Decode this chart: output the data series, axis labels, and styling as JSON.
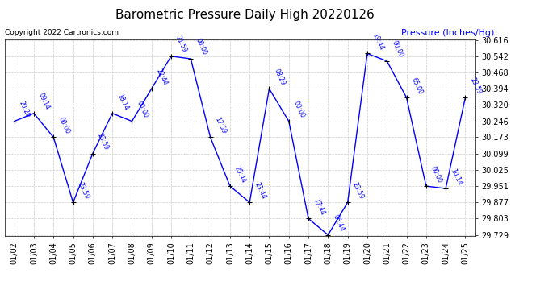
{
  "title": "Barometric Pressure Daily High 20220126",
  "ylabel": "Pressure (Inches/Hg)",
  "copyright": "Copyright 2022 Cartronics.com",
  "line_color": "#0000ff",
  "marker_color": "#000000",
  "background_color": "#ffffff",
  "grid_color": "#cccccc",
  "ylim_min": 29.729,
  "ylim_max": 30.616,
  "ytick_values": [
    29.729,
    29.803,
    29.877,
    29.951,
    30.025,
    30.099,
    30.173,
    30.246,
    30.32,
    30.394,
    30.468,
    30.542,
    30.616
  ],
  "dates": [
    "01/02",
    "01/03",
    "01/04",
    "01/05",
    "01/06",
    "01/07",
    "01/08",
    "01/09",
    "01/10",
    "01/11",
    "01/12",
    "01/13",
    "01/14",
    "01/15",
    "01/16",
    "01/17",
    "01/18",
    "01/19",
    "01/20",
    "01/21",
    "01/22",
    "01/23",
    "01/24",
    "01/25"
  ],
  "values": [
    30.246,
    30.282,
    30.173,
    29.877,
    30.099,
    30.282,
    30.246,
    30.394,
    30.542,
    30.53,
    30.173,
    29.951,
    29.877,
    30.394,
    30.246,
    29.803,
    29.729,
    29.877,
    30.554,
    30.52,
    30.354,
    29.951,
    29.94,
    30.354
  ],
  "time_labels": [
    "20:29",
    "09:14",
    "00:00",
    "23:59",
    "23:59",
    "18:14",
    "00:00",
    "22:44",
    "21:59",
    "00:00",
    "17:59",
    "25:44",
    "23:44",
    "08:29",
    "00:00",
    "17:44",
    "06:44",
    "23:59",
    "19:44",
    "00:00",
    "65:00",
    "00:00",
    "10:14",
    "23:59"
  ],
  "label_rotation": -65,
  "title_fontsize": 11,
  "tick_fontsize": 7,
  "label_fontsize": 5.5,
  "copyright_fontsize": 6.5,
  "ylabel_fontsize": 8
}
